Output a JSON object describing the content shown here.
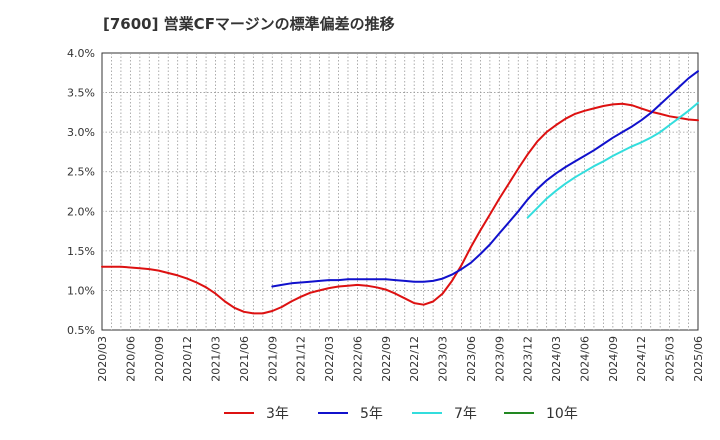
{
  "chart_data": {
    "type": "line",
    "title": "[7600]  営業CFマージンの標準偏差の推移",
    "y_ticks": [
      "0.5%",
      "1.0%",
      "1.5%",
      "2.0%",
      "2.5%",
      "3.0%",
      "3.5%",
      "4.0%"
    ],
    "y_tick_values": [
      0.5,
      1.0,
      1.5,
      2.0,
      2.5,
      3.0,
      3.5,
      4.0
    ],
    "ylim": [
      0.5,
      4.0
    ],
    "x_ticks": [
      "2020/03",
      "2020/06",
      "2020/09",
      "2020/12",
      "2021/03",
      "2021/06",
      "2021/09",
      "2021/12",
      "2022/03",
      "2022/06",
      "2022/09",
      "2022/12",
      "2023/03",
      "2023/06",
      "2023/09",
      "2023/12",
      "2024/03",
      "2024/06",
      "2024/09",
      "2024/12",
      "2025/03",
      "2025/06"
    ],
    "grid": true,
    "legend_position": "bottom",
    "series": [
      {
        "name": "3年",
        "color": "#dd1111",
        "points": [
          [
            "2020/03",
            1.3
          ],
          [
            "2020/04",
            1.3
          ],
          [
            "2020/05",
            1.3
          ],
          [
            "2020/06",
            1.29
          ],
          [
            "2020/07",
            1.28
          ],
          [
            "2020/08",
            1.27
          ],
          [
            "2020/09",
            1.25
          ],
          [
            "2020/10",
            1.22
          ],
          [
            "2020/11",
            1.19
          ],
          [
            "2020/12",
            1.15
          ],
          [
            "2021/01",
            1.1
          ],
          [
            "2021/02",
            1.04
          ],
          [
            "2021/03",
            0.96
          ],
          [
            "2021/04",
            0.86
          ],
          [
            "2021/05",
            0.78
          ],
          [
            "2021/06",
            0.73
          ],
          [
            "2021/07",
            0.71
          ],
          [
            "2021/08",
            0.71
          ],
          [
            "2021/09",
            0.74
          ],
          [
            "2021/10",
            0.79
          ],
          [
            "2021/11",
            0.86
          ],
          [
            "2021/12",
            0.92
          ],
          [
            "2022/01",
            0.97
          ],
          [
            "2022/02",
            1.0
          ],
          [
            "2022/03",
            1.03
          ],
          [
            "2022/04",
            1.05
          ],
          [
            "2022/05",
            1.06
          ],
          [
            "2022/06",
            1.07
          ],
          [
            "2022/07",
            1.06
          ],
          [
            "2022/08",
            1.04
          ],
          [
            "2022/09",
            1.01
          ],
          [
            "2022/10",
            0.96
          ],
          [
            "2022/11",
            0.9
          ],
          [
            "2022/12",
            0.84
          ],
          [
            "2023/01",
            0.82
          ],
          [
            "2023/02",
            0.86
          ],
          [
            "2023/03",
            0.96
          ],
          [
            "2023/04",
            1.12
          ],
          [
            "2023/05",
            1.32
          ],
          [
            "2023/06",
            1.55
          ],
          [
            "2023/07",
            1.76
          ],
          [
            "2023/08",
            1.96
          ],
          [
            "2023/09",
            2.16
          ],
          [
            "2023/10",
            2.35
          ],
          [
            "2023/11",
            2.54
          ],
          [
            "2023/12",
            2.72
          ],
          [
            "2024/01",
            2.88
          ],
          [
            "2024/02",
            3.0
          ],
          [
            "2024/03",
            3.09
          ],
          [
            "2024/04",
            3.17
          ],
          [
            "2024/05",
            3.23
          ],
          [
            "2024/06",
            3.27
          ],
          [
            "2024/07",
            3.3
          ],
          [
            "2024/08",
            3.33
          ],
          [
            "2024/09",
            3.35
          ],
          [
            "2024/10",
            3.36
          ],
          [
            "2024/11",
            3.34
          ],
          [
            "2024/12",
            3.3
          ],
          [
            "2025/01",
            3.26
          ],
          [
            "2025/02",
            3.23
          ],
          [
            "2025/03",
            3.2
          ],
          [
            "2025/04",
            3.18
          ],
          [
            "2025/05",
            3.16
          ],
          [
            "2025/06",
            3.15
          ]
        ]
      },
      {
        "name": "5年",
        "color": "#1111cc",
        "points": [
          [
            "2021/09",
            1.05
          ],
          [
            "2021/10",
            1.07
          ],
          [
            "2021/11",
            1.09
          ],
          [
            "2021/12",
            1.1
          ],
          [
            "2022/01",
            1.11
          ],
          [
            "2022/02",
            1.12
          ],
          [
            "2022/03",
            1.13
          ],
          [
            "2022/04",
            1.13
          ],
          [
            "2022/05",
            1.14
          ],
          [
            "2022/06",
            1.14
          ],
          [
            "2022/07",
            1.14
          ],
          [
            "2022/08",
            1.14
          ],
          [
            "2022/09",
            1.14
          ],
          [
            "2022/10",
            1.13
          ],
          [
            "2022/11",
            1.12
          ],
          [
            "2022/12",
            1.11
          ],
          [
            "2023/01",
            1.11
          ],
          [
            "2023/02",
            1.12
          ],
          [
            "2023/03",
            1.15
          ],
          [
            "2023/04",
            1.2
          ],
          [
            "2023/05",
            1.27
          ],
          [
            "2023/06",
            1.35
          ],
          [
            "2023/07",
            1.46
          ],
          [
            "2023/08",
            1.58
          ],
          [
            "2023/09",
            1.72
          ],
          [
            "2023/10",
            1.86
          ],
          [
            "2023/11",
            2.0
          ],
          [
            "2023/12",
            2.15
          ],
          [
            "2024/01",
            2.28
          ],
          [
            "2024/02",
            2.39
          ],
          [
            "2024/03",
            2.48
          ],
          [
            "2024/04",
            2.56
          ],
          [
            "2024/05",
            2.63
          ],
          [
            "2024/06",
            2.7
          ],
          [
            "2024/07",
            2.77
          ],
          [
            "2024/08",
            2.85
          ],
          [
            "2024/09",
            2.93
          ],
          [
            "2024/10",
            3.0
          ],
          [
            "2024/11",
            3.07
          ],
          [
            "2024/12",
            3.15
          ],
          [
            "2025/01",
            3.24
          ],
          [
            "2025/02",
            3.35
          ],
          [
            "2025/03",
            3.46
          ],
          [
            "2025/04",
            3.57
          ],
          [
            "2025/05",
            3.68
          ],
          [
            "2025/06",
            3.77
          ]
        ]
      },
      {
        "name": "7年",
        "color": "#33dddd",
        "points": [
          [
            "2023/12",
            1.92
          ],
          [
            "2024/01",
            2.04
          ],
          [
            "2024/02",
            2.16
          ],
          [
            "2024/03",
            2.26
          ],
          [
            "2024/04",
            2.35
          ],
          [
            "2024/05",
            2.43
          ],
          [
            "2024/06",
            2.5
          ],
          [
            "2024/07",
            2.57
          ],
          [
            "2024/08",
            2.63
          ],
          [
            "2024/09",
            2.7
          ],
          [
            "2024/10",
            2.76
          ],
          [
            "2024/11",
            2.82
          ],
          [
            "2024/12",
            2.87
          ],
          [
            "2025/01",
            2.93
          ],
          [
            "2025/02",
            3.0
          ],
          [
            "2025/03",
            3.09
          ],
          [
            "2025/04",
            3.18
          ],
          [
            "2025/05",
            3.27
          ],
          [
            "2025/06",
            3.37
          ]
        ]
      },
      {
        "name": "10年",
        "color": "#228822",
        "points": []
      }
    ]
  }
}
